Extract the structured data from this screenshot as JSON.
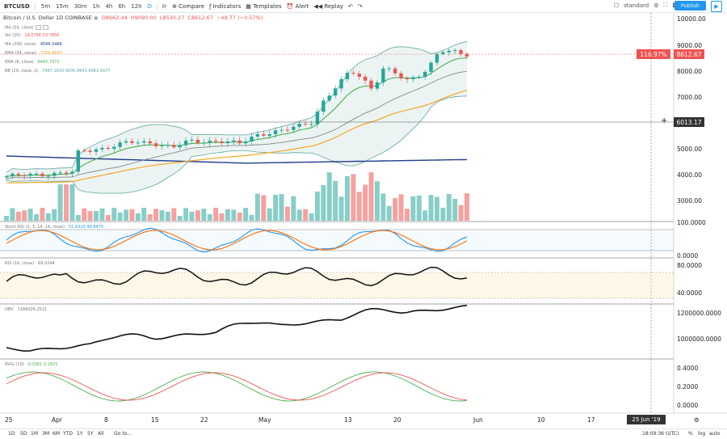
{
  "toolbar": {
    "symbol": "BTCUSD",
    "timeframes": [
      "5m",
      "15m",
      "30m",
      "1h",
      "4h",
      "6h",
      "12h",
      "D"
    ],
    "active_timeframe": "D",
    "compare_label": "Compare",
    "indicators_label": "Indicators",
    "templates_label": "Templates",
    "alert_label": "Alert",
    "replay_label": "Replay",
    "layout_label": "standard",
    "publish_label": "Publish"
  },
  "header": {
    "title": "Bitcoin / U.S. Dollar  1D  COINBASE",
    "open": "O8662.44",
    "high": "H9090.00",
    "low": "L8530.27",
    "close": "C8612.67",
    "change": "−49.77 (−0.57%)"
  },
  "legends": [
    {
      "name": "MA (50, close)",
      "value": ""
    },
    {
      "name": "Vol (20)",
      "value": "18.076K  53.785K"
    },
    {
      "name": "MA (200, close)",
      "value": "4566.5466"
    },
    {
      "name": "EMA (34, close)",
      "value": "7256.4097"
    },
    {
      "name": "EMA (8, close)",
      "value": "8465.7972"
    },
    {
      "name": "BB (20, close, 2)",
      "value": "7997.1810  9030.8643  6963.4977"
    }
  ],
  "price_axis": [
    "10000.00",
    "9000.00",
    "8000.00",
    "7000.00",
    "6000.00",
    "5000.00",
    "4000.00",
    "3000.00"
  ],
  "price_labels": {
    "pct": "116.97%",
    "last": "8612.67",
    "crosshair": "6013.17"
  },
  "stoch": {
    "name": "Stoch RSI (3, 3, 14, 14, close)",
    "value": "51.6310  49.8479",
    "axis": [
      "100.0000",
      "0.0000"
    ]
  },
  "rsi": {
    "name": "RSI (14, close)",
    "value": "69.0244",
    "axis": [
      "80.0000",
      "40.0000"
    ]
  },
  "obv": {
    "name": "OBV",
    "value": "1166026.2521",
    "axis": [
      "1200000.0000",
      "1000000.0000"
    ]
  },
  "rvgi": {
    "name": "RVGI (10)",
    "value": "0.2061  0.1825",
    "axis": [
      "0.4000",
      "0.2000",
      "0.0000"
    ]
  },
  "time_axis": [
    "25",
    "Apr",
    "8",
    "15",
    "22",
    "May",
    "13",
    "20",
    "Jun",
    "10",
    "17",
    "24"
  ],
  "crosshair_date": "25 Jun '19",
  "bottom": {
    "ranges": [
      "1D",
      "5D",
      "1M",
      "3M",
      "6M",
      "YTD",
      "1Y",
      "5Y",
      "All"
    ],
    "goto": "Go to...",
    "clock": "18:09:36 (UTC)",
    "pct": "%",
    "log": "log",
    "auto": "auto"
  },
  "colors": {
    "up": "#26a69a",
    "down": "#ef5350",
    "ema8": "#4caf50",
    "ema34": "#f5a623",
    "ma200": "#1f3b8c",
    "bb": "#5fa7a0",
    "stochK": "#2196f3",
    "stochD": "#ff6d00"
  }
}
